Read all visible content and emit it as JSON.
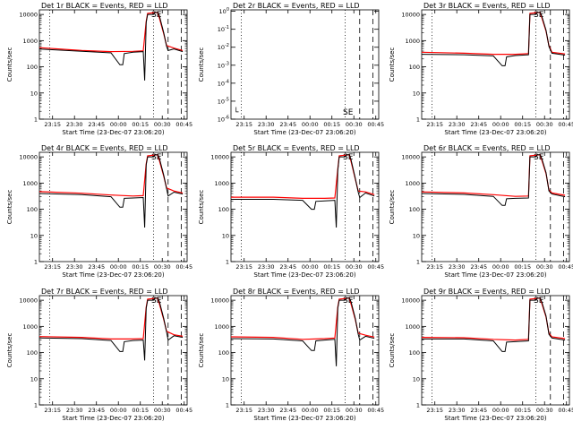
{
  "figure": {
    "panels": [
      {
        "title": "Det 1r BLACK = Events, RED = LLD",
        "xlabel": "Start Time (23-Dec-07 23:06:20)",
        "ylabel": "Counts/sec"
      },
      {
        "title": "Det 2r BLACK = Events, RED = LLD",
        "xlabel": "Start Time (23-Dec-07 23:06:20)",
        "ylabel": "Counts/sec"
      },
      {
        "title": "Det 3r BLACK = Events, RED = LLD",
        "xlabel": "Start Time (23-Dec-07 23:06:20)",
        "ylabel": "Counts/sec"
      },
      {
        "title": "Det 4r BLACK = Events, RED = LLD",
        "xlabel": "Start Time (23-Dec-07 23:06:20)",
        "ylabel": "Counts/sec"
      },
      {
        "title": "Det 5r BLACK = Events, RED = LLD",
        "xlabel": "Start Time (23-Dec-07 23:06:20)",
        "ylabel": "Counts/sec"
      },
      {
        "title": "Det 6r BLACK = Events, RED = LLD",
        "xlabel": "Start Time (23-Dec-07 23:06:20)",
        "ylabel": "Counts/sec"
      },
      {
        "title": "Det 7r BLACK = Events, RED = LLD",
        "xlabel": "Start Time (23-Dec-07 23:06:20)",
        "ylabel": "Counts/sec"
      },
      {
        "title": "Det 8r BLACK = Events, RED = LLD",
        "xlabel": "Start Time (23-Dec-07 23:06:20)",
        "ylabel": "Counts/sec"
      },
      {
        "title": "Det 9r BLACK = Events, RED = LLD",
        "xlabel": "Start Time (23-Dec-07 23:06:20)",
        "ylabel": "Counts/sec"
      }
    ]
  },
  "chart_data": {
    "type": "line",
    "layout": "3x3 grid",
    "x_ticks": [
      "23:15",
      "23:30",
      "23:45",
      "00:00",
      "00:15",
      "00:30",
      "00:45"
    ],
    "x_tick_minutes": [
      0,
      15,
      30,
      45,
      60,
      75,
      90
    ],
    "xlim_minutes": [
      -9,
      92
    ],
    "y_scale": "log",
    "ylim": [
      1,
      15000
    ],
    "y_ticks": [
      1,
      10,
      100,
      1000,
      10000
    ],
    "y_tick_labels": [
      "1",
      "10",
      "100",
      "1000",
      "10000"
    ],
    "panel2_ylim": [
      1e-06,
      1.2
    ],
    "panel2_y_tick_labels": [
      "10^-6",
      "10^-5",
      "10^-4",
      "10^-3",
      "10^-2",
      "10^-1",
      "10^0"
    ],
    "dotted_lines_minutes": [
      -2,
      69
    ],
    "dashed_lines_minutes": [
      79,
      88
    ],
    "annotation": "SE",
    "annotation_at_minutes": 71,
    "series_names": [
      "Events",
      "LLD"
    ],
    "series_colors": [
      "#000000",
      "#ff0000"
    ],
    "panels": [
      {
        "det": "1r",
        "events": [
          [
            -9,
            480
          ],
          [
            20,
            390
          ],
          [
            40,
            340
          ],
          [
            46,
            120
          ],
          [
            48,
            120
          ],
          [
            49,
            320
          ],
          [
            55,
            360
          ],
          [
            62,
            380
          ],
          [
            63,
            30
          ],
          [
            64,
            5000
          ],
          [
            65,
            10000
          ],
          [
            69,
            10000
          ],
          [
            70,
            12000
          ],
          [
            72,
            12000
          ],
          [
            73,
            9000
          ],
          [
            76,
            2000
          ],
          [
            78,
            600
          ],
          [
            79,
            420
          ],
          [
            83,
            480
          ],
          [
            89,
            380
          ]
        ],
        "lld": [
          [
            -9,
            540
          ],
          [
            20,
            420
          ],
          [
            40,
            380
          ],
          [
            55,
            390
          ],
          [
            62,
            410
          ],
          [
            64,
            5500
          ],
          [
            65,
            11000
          ],
          [
            72,
            12000
          ],
          [
            76,
            1800
          ],
          [
            78,
            650
          ],
          [
            83,
            520
          ],
          [
            89,
            420
          ]
        ]
      },
      {
        "det": "2r",
        "events": [],
        "lld": []
      },
      {
        "det": "3r",
        "events": [
          [
            -9,
            300
          ],
          [
            20,
            290
          ],
          [
            40,
            260
          ],
          [
            46,
            110
          ],
          [
            48,
            110
          ],
          [
            49,
            240
          ],
          [
            55,
            270
          ],
          [
            64,
            290
          ],
          [
            65,
            10000
          ],
          [
            69,
            10000
          ],
          [
            70,
            12000
          ],
          [
            72,
            12000
          ],
          [
            73,
            9000
          ],
          [
            76,
            2500
          ],
          [
            78,
            600
          ],
          [
            80,
            330
          ],
          [
            89,
            280
          ]
        ],
        "lld": [
          [
            -9,
            360
          ],
          [
            20,
            330
          ],
          [
            40,
            300
          ],
          [
            55,
            300
          ],
          [
            64,
            320
          ],
          [
            65,
            11000
          ],
          [
            72,
            12000
          ],
          [
            76,
            2300
          ],
          [
            78,
            650
          ],
          [
            80,
            360
          ],
          [
            89,
            310
          ]
        ]
      },
      {
        "det": "4r",
        "events": [
          [
            -9,
            400
          ],
          [
            20,
            360
          ],
          [
            40,
            300
          ],
          [
            46,
            120
          ],
          [
            48,
            120
          ],
          [
            49,
            260
          ],
          [
            55,
            270
          ],
          [
            62,
            280
          ],
          [
            63,
            20
          ],
          [
            64,
            5000
          ],
          [
            65,
            10000
          ],
          [
            69,
            10000
          ],
          [
            70,
            12000
          ],
          [
            72,
            12000
          ],
          [
            73,
            9000
          ],
          [
            76,
            2000
          ],
          [
            78,
            600
          ],
          [
            79,
            320
          ],
          [
            83,
            450
          ],
          [
            89,
            380
          ]
        ],
        "lld": [
          [
            -9,
            470
          ],
          [
            20,
            410
          ],
          [
            40,
            350
          ],
          [
            55,
            320
          ],
          [
            62,
            330
          ],
          [
            64,
            5500
          ],
          [
            65,
            11000
          ],
          [
            72,
            12000
          ],
          [
            76,
            1800
          ],
          [
            78,
            650
          ],
          [
            83,
            500
          ],
          [
            89,
            420
          ]
        ]
      },
      {
        "det": "5r",
        "events": [
          [
            -9,
            240
          ],
          [
            20,
            240
          ],
          [
            40,
            220
          ],
          [
            46,
            100
          ],
          [
            48,
            100
          ],
          [
            49,
            200
          ],
          [
            55,
            210
          ],
          [
            62,
            220
          ],
          [
            63,
            20
          ],
          [
            64,
            3000
          ],
          [
            65,
            10000
          ],
          [
            69,
            10000
          ],
          [
            70,
            12000
          ],
          [
            72,
            12000
          ],
          [
            73,
            8000
          ],
          [
            76,
            1500
          ],
          [
            78,
            450
          ],
          [
            79,
            280
          ],
          [
            83,
            420
          ],
          [
            89,
            320
          ]
        ],
        "lld": [
          [
            -9,
            290
          ],
          [
            20,
            290
          ],
          [
            40,
            260
          ],
          [
            55,
            260
          ],
          [
            62,
            270
          ],
          [
            64,
            3500
          ],
          [
            65,
            11000
          ],
          [
            72,
            12000
          ],
          [
            76,
            1400
          ],
          [
            78,
            500
          ],
          [
            83,
            460
          ],
          [
            89,
            360
          ]
        ]
      },
      {
        "det": "6r",
        "events": [
          [
            -9,
            400
          ],
          [
            20,
            370
          ],
          [
            40,
            310
          ],
          [
            46,
            140
          ],
          [
            48,
            140
          ],
          [
            49,
            250
          ],
          [
            55,
            260
          ],
          [
            64,
            270
          ],
          [
            65,
            10000
          ],
          [
            69,
            10000
          ],
          [
            70,
            12000
          ],
          [
            72,
            12000
          ],
          [
            73,
            9000
          ],
          [
            76,
            2500
          ],
          [
            78,
            500
          ],
          [
            80,
            380
          ],
          [
            89,
            300
          ]
        ],
        "lld": [
          [
            -9,
            460
          ],
          [
            20,
            420
          ],
          [
            40,
            360
          ],
          [
            55,
            310
          ],
          [
            64,
            320
          ],
          [
            65,
            11000
          ],
          [
            72,
            12000
          ],
          [
            76,
            2300
          ],
          [
            78,
            550
          ],
          [
            80,
            420
          ],
          [
            89,
            340
          ]
        ]
      },
      {
        "det": "7r",
        "events": [
          [
            -9,
            360
          ],
          [
            20,
            340
          ],
          [
            40,
            290
          ],
          [
            46,
            110
          ],
          [
            48,
            110
          ],
          [
            49,
            260
          ],
          [
            55,
            290
          ],
          [
            62,
            300
          ],
          [
            63,
            50
          ],
          [
            64,
            5000
          ],
          [
            65,
            10000
          ],
          [
            69,
            10000
          ],
          [
            70,
            12000
          ],
          [
            72,
            12000
          ],
          [
            73,
            9000
          ],
          [
            76,
            2000
          ],
          [
            78,
            600
          ],
          [
            79,
            300
          ],
          [
            83,
            440
          ],
          [
            89,
            380
          ]
        ],
        "lld": [
          [
            -9,
            410
          ],
          [
            20,
            380
          ],
          [
            40,
            330
          ],
          [
            55,
            330
          ],
          [
            62,
            340
          ],
          [
            64,
            5500
          ],
          [
            65,
            11000
          ],
          [
            72,
            12000
          ],
          [
            76,
            1800
          ],
          [
            78,
            650
          ],
          [
            83,
            480
          ],
          [
            89,
            420
          ]
        ]
      },
      {
        "det": "8r",
        "events": [
          [
            -9,
            340
          ],
          [
            20,
            330
          ],
          [
            40,
            280
          ],
          [
            46,
            120
          ],
          [
            48,
            120
          ],
          [
            49,
            280
          ],
          [
            55,
            300
          ],
          [
            62,
            320
          ],
          [
            63,
            30
          ],
          [
            64,
            5000
          ],
          [
            65,
            10000
          ],
          [
            69,
            10000
          ],
          [
            70,
            12000
          ],
          [
            72,
            12000
          ],
          [
            73,
            9000
          ],
          [
            76,
            2000
          ],
          [
            78,
            500
          ],
          [
            79,
            300
          ],
          [
            83,
            420
          ],
          [
            89,
            350
          ]
        ],
        "lld": [
          [
            -9,
            400
          ],
          [
            20,
            380
          ],
          [
            40,
            320
          ],
          [
            55,
            340
          ],
          [
            62,
            360
          ],
          [
            64,
            5500
          ],
          [
            65,
            11000
          ],
          [
            72,
            12000
          ],
          [
            76,
            1800
          ],
          [
            78,
            550
          ],
          [
            83,
            460
          ],
          [
            89,
            390
          ]
        ]
      },
      {
        "det": "9r",
        "events": [
          [
            -9,
            330
          ],
          [
            20,
            330
          ],
          [
            40,
            280
          ],
          [
            46,
            110
          ],
          [
            48,
            110
          ],
          [
            49,
            250
          ],
          [
            55,
            260
          ],
          [
            64,
            280
          ],
          [
            65,
            10000
          ],
          [
            69,
            10000
          ],
          [
            70,
            12000
          ],
          [
            72,
            12000
          ],
          [
            73,
            9000
          ],
          [
            76,
            2500
          ],
          [
            78,
            500
          ],
          [
            80,
            360
          ],
          [
            89,
            300
          ]
        ],
        "lld": [
          [
            -9,
            380
          ],
          [
            20,
            370
          ],
          [
            40,
            320
          ],
          [
            55,
            300
          ],
          [
            64,
            320
          ],
          [
            65,
            11000
          ],
          [
            72,
            12000
          ],
          [
            76,
            2300
          ],
          [
            78,
            550
          ],
          [
            80,
            400
          ],
          [
            89,
            340
          ]
        ]
      }
    ]
  }
}
